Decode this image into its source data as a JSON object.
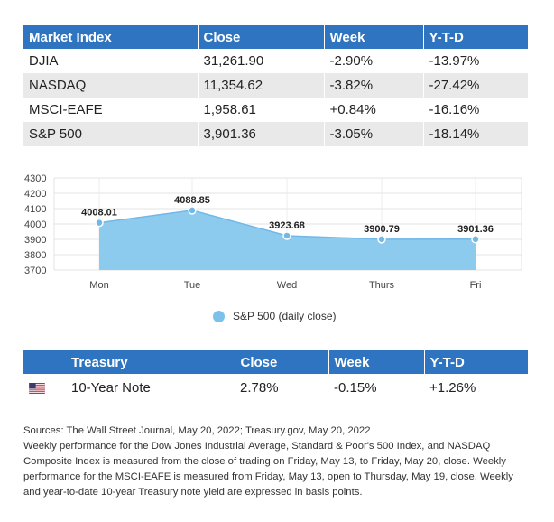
{
  "market_table": {
    "headers": [
      "Market Index",
      "Close",
      "Week",
      "Y-T-D"
    ],
    "rows": [
      [
        "DJIA",
        "31,261.90",
        "-2.90%",
        "-13.97%"
      ],
      [
        "NASDAQ",
        "11,354.62",
        "-3.82%",
        "-27.42%"
      ],
      [
        "MSCI-EAFE",
        "1,958.61",
        "+0.84%",
        "-16.16%"
      ],
      [
        "S&P 500",
        "3,901.36",
        "-3.05%",
        "-18.14%"
      ]
    ]
  },
  "chart_data": {
    "type": "area",
    "categories": [
      "Mon",
      "Tue",
      "Wed",
      "Thurs",
      "Fri"
    ],
    "series": [
      {
        "name": "S&P 500 (daily close)",
        "values": [
          4008.01,
          4088.85,
          3923.68,
          3900.79,
          3901.36
        ],
        "labels": [
          "4008.01",
          "4088.85",
          "3923.68",
          "3900.79",
          "3901.36"
        ],
        "color": "#8dcbee",
        "marker_color": "#6fb8e8"
      }
    ],
    "y_ticks": [
      4300,
      4200,
      4100,
      4000,
      3900,
      3800,
      3700
    ],
    "ylim": [
      3700,
      4300
    ],
    "grid": true,
    "legend": "bottom",
    "title": "",
    "xlabel": "",
    "ylabel": ""
  },
  "treasury_table": {
    "headers": [
      "",
      "Treasury",
      "Close",
      "Week",
      "Y-T-D"
    ],
    "row": {
      "flag": "us-flag-icon",
      "name": "10-Year Note",
      "close": "2.78%",
      "week": "-0.15%",
      "ytd": "+1.26%"
    }
  },
  "notes": {
    "line1": "Sources: The Wall Street Journal, May 20, 2022; Treasury.gov, May 20, 2022",
    "line2": "Weekly performance for the Dow Jones Industrial Average, Standard & Poor's 500 Index, and NASDAQ Composite Index is measured from the close of trading on Friday, May 13, to Friday, May 20, close. Weekly performance for the MSCI-EAFE is measured from Friday, May 13, open to Thursday, May 19, close. Weekly and year-to-date 10-year Treasury note yield are expressed in basis points."
  },
  "colors": {
    "header_blue": "#2f74c0",
    "row_stripe": "#e9e9e9",
    "area_fill": "#8dcbee"
  }
}
